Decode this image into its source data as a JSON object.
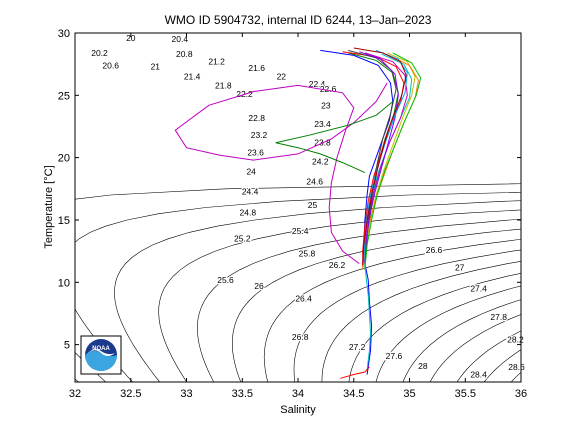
{
  "chart_data": {
    "type": "line",
    "title": "WMO ID 5904732, internal ID 6244, 13–Jan–2023",
    "xlabel": "Salinity",
    "ylabel": "Temperature [°C]",
    "xlim": [
      32,
      36
    ],
    "ylim": [
      2,
      30
    ],
    "xticks": [
      "32",
      "32.5",
      "33",
      "33.5",
      "34",
      "34.5",
      "35",
      "35.5",
      "36"
    ],
    "yticks": [
      "5",
      "10",
      "15",
      "20",
      "25",
      "30"
    ],
    "grid": false,
    "isopycnals": {
      "labels": [
        {
          "text": "20",
          "s": 32.5,
          "t": 29.6
        },
        {
          "text": "20.2",
          "s": 32.22,
          "t": 28.4
        },
        {
          "text": "20.4",
          "s": 32.94,
          "t": 29.5
        },
        {
          "text": "20.6",
          "s": 32.32,
          "t": 27.4
        },
        {
          "text": "20.8",
          "s": 32.98,
          "t": 28.3
        },
        {
          "text": "21",
          "s": 32.72,
          "t": 27.3
        },
        {
          "text": "21.2",
          "s": 33.27,
          "t": 27.7
        },
        {
          "text": "21.4",
          "s": 33.05,
          "t": 26.5
        },
        {
          "text": "21.6",
          "s": 33.63,
          "t": 27.2
        },
        {
          "text": "21.8",
          "s": 33.33,
          "t": 25.8
        },
        {
          "text": "22",
          "s": 33.85,
          "t": 26.5
        },
        {
          "text": "22.2",
          "s": 33.52,
          "t": 25.1
        },
        {
          "text": "22.4",
          "s": 34.17,
          "t": 25.9
        },
        {
          "text": "22.6",
          "s": 34.27,
          "t": 25.5
        },
        {
          "text": "22.8",
          "s": 33.63,
          "t": 23.2
        },
        {
          "text": "23",
          "s": 34.25,
          "t": 24.2
        },
        {
          "text": "23.2",
          "s": 33.65,
          "t": 21.8
        },
        {
          "text": "23.4",
          "s": 34.22,
          "t": 22.7
        },
        {
          "text": "23.6",
          "s": 33.62,
          "t": 20.4
        },
        {
          "text": "23.8",
          "s": 34.22,
          "t": 21.2
        },
        {
          "text": "24",
          "s": 33.58,
          "t": 18.9
        },
        {
          "text": "24.2",
          "s": 34.2,
          "t": 19.7
        },
        {
          "text": "24.4",
          "s": 33.57,
          "t": 17.3
        },
        {
          "text": "24.6",
          "s": 34.15,
          "t": 18.1
        },
        {
          "text": "24.8",
          "s": 33.55,
          "t": 15.6
        },
        {
          "text": "25",
          "s": 34.13,
          "t": 16.2
        },
        {
          "text": "25.2",
          "s": 33.5,
          "t": 13.5
        },
        {
          "text": "25.4",
          "s": 34.02,
          "t": 14.1
        },
        {
          "text": "25.6",
          "s": 33.35,
          "t": 10.2
        },
        {
          "text": "25.8",
          "s": 34.08,
          "t": 12.3
        },
        {
          "text": "26",
          "s": 33.65,
          "t": 9.7
        },
        {
          "text": "26.2",
          "s": 34.35,
          "t": 11.4
        },
        {
          "text": "26.4",
          "s": 34.05,
          "t": 8.7
        },
        {
          "text": "26.6",
          "s": 35.22,
          "t": 12.6
        },
        {
          "text": "26.8",
          "s": 34.02,
          "t": 5.6
        },
        {
          "text": "27",
          "s": 35.45,
          "t": 11.2
        },
        {
          "text": "27.2",
          "s": 34.53,
          "t": 4.8
        },
        {
          "text": "27.4",
          "s": 35.62,
          "t": 9.5
        },
        {
          "text": "27.6",
          "s": 34.86,
          "t": 4.1
        },
        {
          "text": "27.8",
          "s": 35.8,
          "t": 7.2
        },
        {
          "text": "28",
          "s": 35.12,
          "t": 3.3
        },
        {
          "text": "28.2",
          "s": 35.95,
          "t": 5.4
        },
        {
          "text": "28.4",
          "s": 35.62,
          "t": 2.6
        },
        {
          "text": "28.6",
          "s": 35.96,
          "t": 3.2
        }
      ]
    },
    "series": [
      {
        "color": "#0000ff",
        "points": [
          [
            34.62,
            2.6
          ],
          [
            34.65,
            4.5
          ],
          [
            34.66,
            6.5
          ],
          [
            34.64,
            8.5
          ],
          [
            34.63,
            10.2
          ],
          [
            34.6,
            11.5
          ],
          [
            34.59,
            13
          ],
          [
            34.6,
            15
          ],
          [
            34.62,
            17
          ],
          [
            34.64,
            18.5
          ],
          [
            34.7,
            20
          ],
          [
            34.76,
            21.5
          ],
          [
            34.82,
            23
          ],
          [
            34.85,
            24.5
          ],
          [
            34.83,
            26
          ],
          [
            34.72,
            27.4
          ],
          [
            34.5,
            28.2
          ],
          [
            34.2,
            28.6
          ]
        ]
      },
      {
        "color": "#008000",
        "points": [
          [
            34.6,
            11.4
          ],
          [
            34.62,
            13.5
          ],
          [
            34.65,
            15.5
          ],
          [
            34.68,
            17.5
          ],
          [
            34.72,
            19.5
          ],
          [
            34.78,
            21.5
          ],
          [
            34.86,
            23.5
          ],
          [
            34.9,
            25.2
          ],
          [
            34.85,
            26.8
          ],
          [
            34.7,
            27.8
          ],
          [
            34.45,
            28.4
          ]
        ]
      },
      {
        "color": "#ff0000",
        "points": [
          [
            34.58,
            11.2
          ],
          [
            34.58,
            12.5
          ],
          [
            34.6,
            14.5
          ],
          [
            34.63,
            16.5
          ],
          [
            34.68,
            18.5
          ],
          [
            34.75,
            20.5
          ],
          [
            34.82,
            22.5
          ],
          [
            34.92,
            24.5
          ],
          [
            34.95,
            26
          ],
          [
            34.88,
            27.3
          ],
          [
            34.7,
            28.1
          ],
          [
            34.4,
            28.5
          ]
        ]
      },
      {
        "color": "#00bfbf",
        "points": [
          [
            34.6,
            11
          ],
          [
            34.6,
            12.8
          ],
          [
            34.62,
            14.8
          ],
          [
            34.66,
            16.8
          ],
          [
            34.72,
            18.8
          ],
          [
            34.8,
            20.8
          ],
          [
            34.9,
            22.8
          ],
          [
            35.0,
            24.8
          ],
          [
            35.02,
            26.3
          ],
          [
            34.95,
            27.5
          ],
          [
            34.75,
            28.3
          ]
        ]
      },
      {
        "color": "#bf00bf",
        "points": [
          [
            34.58,
            11.6
          ],
          [
            34.6,
            13.2
          ],
          [
            34.63,
            15.2
          ],
          [
            34.68,
            17.2
          ],
          [
            34.74,
            19.2
          ],
          [
            34.82,
            21.2
          ],
          [
            34.92,
            23.2
          ],
          [
            34.98,
            25
          ],
          [
            34.96,
            26.6
          ],
          [
            34.85,
            27.7
          ],
          [
            34.6,
            28.4
          ]
        ]
      },
      {
        "color": "#bfbf00",
        "points": [
          [
            34.59,
            11.3
          ],
          [
            34.61,
            13
          ],
          [
            34.65,
            15
          ],
          [
            34.7,
            17
          ],
          [
            34.77,
            19
          ],
          [
            34.85,
            21
          ],
          [
            34.93,
            23
          ],
          [
            35.02,
            25
          ],
          [
            35.05,
            26.5
          ],
          [
            34.98,
            27.7
          ],
          [
            34.8,
            28.4
          ]
        ]
      },
      {
        "color": "#404040",
        "points": [
          [
            34.6,
            11.5
          ],
          [
            34.62,
            13.5
          ],
          [
            34.64,
            15.5
          ],
          [
            34.67,
            17.5
          ],
          [
            34.71,
            19.5
          ],
          [
            34.76,
            21.5
          ],
          [
            34.83,
            23.5
          ],
          [
            34.88,
            25.5
          ],
          [
            34.84,
            27
          ],
          [
            34.7,
            28
          ],
          [
            34.45,
            28.6
          ]
        ]
      },
      {
        "color": "#ff8000",
        "points": [
          [
            34.58,
            11
          ],
          [
            34.6,
            12.8
          ],
          [
            34.64,
            14.8
          ],
          [
            34.7,
            16.8
          ],
          [
            34.78,
            18.8
          ],
          [
            34.86,
            20.8
          ],
          [
            34.95,
            22.8
          ],
          [
            35.05,
            24.8
          ],
          [
            35.08,
            26.2
          ],
          [
            35.0,
            27.4
          ],
          [
            34.82,
            28.2
          ]
        ]
      },
      {
        "color": "#7f00ff",
        "points": [
          [
            34.6,
            11.2
          ],
          [
            34.61,
            13.2
          ],
          [
            34.64,
            15.2
          ],
          [
            34.69,
            17.2
          ],
          [
            34.75,
            19.2
          ],
          [
            34.81,
            21.2
          ],
          [
            34.87,
            23.2
          ],
          [
            34.9,
            25
          ],
          [
            34.87,
            26.7
          ],
          [
            34.74,
            27.9
          ],
          [
            34.55,
            28.5
          ]
        ]
      },
      {
        "color": "#00a0ff",
        "points": [
          [
            34.59,
            11.6
          ],
          [
            34.6,
            13.4
          ],
          [
            34.62,
            15.4
          ],
          [
            34.66,
            17.4
          ],
          [
            34.72,
            19.4
          ],
          [
            34.79,
            21.4
          ],
          [
            34.87,
            23.4
          ],
          [
            34.96,
            25.2
          ],
          [
            34.98,
            26.8
          ],
          [
            34.9,
            27.9
          ],
          [
            34.7,
            28.6
          ]
        ]
      },
      {
        "color": "#a00000",
        "points": [
          [
            34.58,
            11.4
          ],
          [
            34.59,
            13
          ],
          [
            34.62,
            15
          ],
          [
            34.66,
            17
          ],
          [
            34.71,
            19
          ],
          [
            34.77,
            21
          ],
          [
            34.84,
            23
          ],
          [
            34.93,
            25
          ],
          [
            34.97,
            26.6
          ],
          [
            34.92,
            27.7
          ],
          [
            34.76,
            28.4
          ],
          [
            34.5,
            28.8
          ]
        ]
      },
      {
        "color": "#00c000",
        "points": [
          [
            34.6,
            11
          ],
          [
            34.62,
            13
          ],
          [
            34.66,
            15
          ],
          [
            34.71,
            17
          ],
          [
            34.78,
            19
          ],
          [
            34.87,
            21
          ],
          [
            34.96,
            23
          ],
          [
            35.06,
            25
          ],
          [
            35.1,
            26.4
          ],
          [
            35.02,
            27.6
          ],
          [
            34.85,
            28.4
          ]
        ]
      },
      {
        "color": "#bf00bf",
        "points": [
          [
            34.55,
            11.5
          ],
          [
            34.4,
            12.5
          ],
          [
            34.3,
            14
          ],
          [
            34.28,
            16
          ],
          [
            34.3,
            18
          ],
          [
            34.35,
            20
          ],
          [
            34.42,
            22
          ],
          [
            34.5,
            24
          ],
          [
            34.4,
            25.2
          ],
          [
            34.0,
            25.8
          ],
          [
            33.6,
            25.3
          ],
          [
            33.2,
            24.2
          ],
          [
            32.9,
            22.2
          ],
          [
            33.0,
            20.8
          ],
          [
            33.3,
            20.2
          ],
          [
            33.6,
            19.8
          ],
          [
            34.0,
            20.3
          ],
          [
            34.3,
            21.5
          ],
          [
            34.5,
            22.8
          ],
          [
            34.7,
            24.5
          ],
          [
            34.8,
            26
          ]
        ]
      },
      {
        "color": "#008000",
        "points": [
          [
            34.6,
            18.8
          ],
          [
            34.4,
            19.6
          ],
          [
            34.2,
            20.3
          ],
          [
            34.0,
            20.8
          ],
          [
            33.8,
            21.2
          ],
          [
            34.1,
            21.8
          ],
          [
            34.45,
            22.6
          ],
          [
            34.7,
            23.4
          ],
          [
            34.85,
            24.5
          ]
        ]
      },
      {
        "color": "#00bfbf",
        "points": [
          [
            34.62,
            3.0
          ],
          [
            34.64,
            4.5
          ],
          [
            34.65,
            6
          ],
          [
            34.64,
            7.5
          ],
          [
            34.63,
            9
          ],
          [
            34.61,
            10.5
          ],
          [
            34.6,
            11.5
          ]
        ]
      },
      {
        "color": "#ff0000",
        "points": [
          [
            34.38,
            2.3
          ],
          [
            34.5,
            2.6
          ],
          [
            34.6,
            2.8
          ],
          [
            34.64,
            3.2
          ]
        ]
      }
    ]
  },
  "logo": {
    "text": "NOAA",
    "colors": {
      "top": "#1a3a8c",
      "bottom": "#3aa5e0",
      "bird": "#ffffff"
    }
  }
}
